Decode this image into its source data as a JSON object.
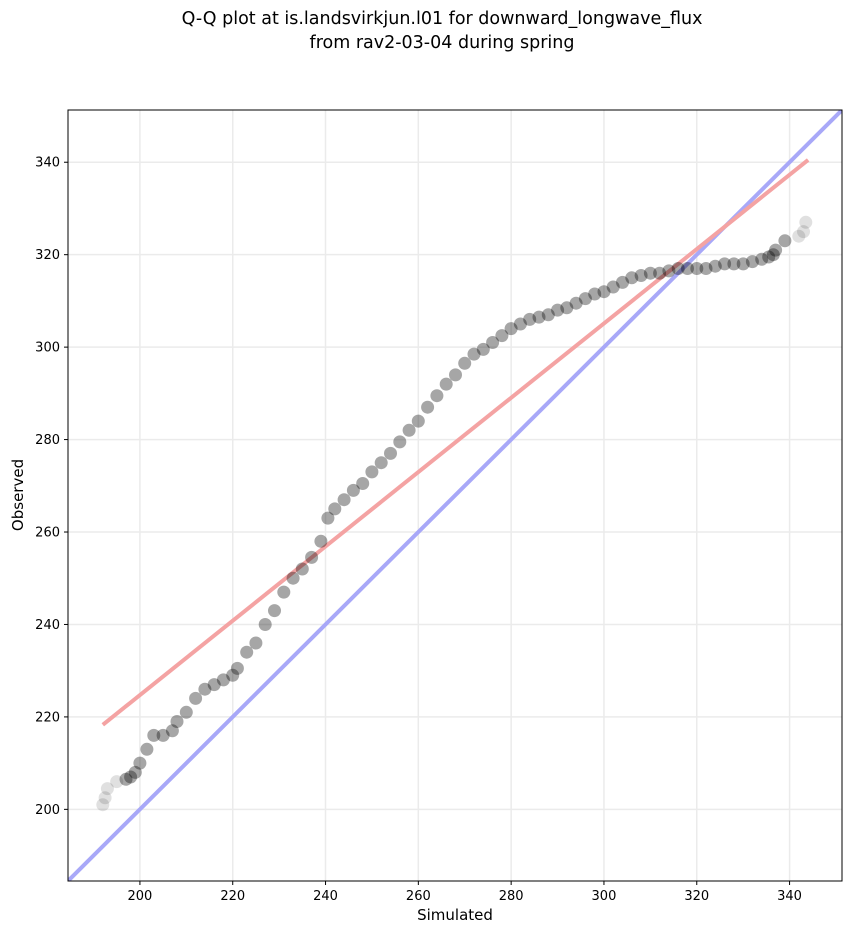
{
  "chart_data": {
    "type": "scatter",
    "title": "Q-Q plot at is.landsvirkjun.l01 for downward_longwave_flux",
    "subtitle": "from rav2-03-04 during spring",
    "xlabel": "Simulated",
    "ylabel": "Observed",
    "xlim": [
      184.5,
      351.3
    ],
    "ylim": [
      184.5,
      351.3
    ],
    "xticks": [
      200,
      220,
      240,
      260,
      280,
      300,
      320,
      340
    ],
    "yticks": [
      200,
      220,
      240,
      260,
      280,
      300,
      320,
      340
    ],
    "grid": true,
    "legend": "none",
    "colors": {
      "points": "#000000",
      "fit_line": "#f4a3a3",
      "one_to_one_line": "#a8a8f8",
      "grid": "#ebebeb"
    },
    "fit_line": {
      "x": [
        192,
        344
      ],
      "y": [
        218.3,
        340.5
      ]
    },
    "one_to_one_line": {
      "x": [
        184.5,
        351.3
      ],
      "y": [
        184.5,
        351.3
      ]
    },
    "quantiles": {
      "x": [
        192.0,
        192.5,
        193.0,
        195.0,
        197.0,
        198.0,
        199.0,
        200.0,
        201.5,
        203.0,
        205.0,
        207.0,
        208.0,
        210.0,
        212.0,
        214.0,
        216.0,
        218.0,
        220.0,
        221.0,
        223.0,
        225.0,
        227.0,
        229.0,
        231.0,
        233.0,
        235.0,
        237.0,
        239.0,
        240.5,
        242.0,
        244.0,
        246.0,
        248.0,
        250.0,
        252.0,
        254.0,
        256.0,
        258.0,
        260.0,
        262.0,
        264.0,
        266.0,
        268.0,
        270.0,
        272.0,
        274.0,
        276.0,
        278.0,
        280.0,
        282.0,
        284.0,
        286.0,
        288.0,
        290.0,
        292.0,
        294.0,
        296.0,
        298.0,
        300.0,
        302.0,
        304.0,
        306.0,
        308.0,
        310.0,
        312.0,
        314.0,
        316.0,
        318.0,
        320.0,
        322.0,
        324.0,
        326.0,
        328.0,
        330.0,
        332.0,
        334.0,
        335.5,
        336.5,
        337.0,
        339.0,
        342.0,
        343.0,
        343.5
      ],
      "y": [
        201.0,
        202.5,
        204.5,
        206.0,
        206.5,
        207.0,
        208.0,
        210.0,
        213.0,
        216.0,
        216.0,
        217.0,
        219.0,
        221.0,
        224.0,
        226.0,
        227.0,
        228.0,
        229.0,
        230.5,
        234.0,
        236.0,
        240.0,
        243.0,
        247.0,
        250.0,
        252.0,
        254.5,
        258.0,
        263.0,
        265.0,
        267.0,
        269.0,
        270.5,
        273.0,
        275.0,
        277.0,
        279.5,
        282.0,
        284.0,
        287.0,
        289.5,
        292.0,
        294.0,
        296.5,
        298.5,
        299.5,
        301.0,
        302.5,
        304.0,
        305.0,
        306.0,
        306.5,
        307.0,
        308.0,
        308.5,
        309.5,
        310.5,
        311.5,
        312.0,
        313.0,
        314.0,
        315.0,
        315.5,
        316.0,
        316.0,
        316.5,
        317.0,
        317.0,
        317.0,
        317.0,
        317.5,
        318.0,
        318.0,
        318.0,
        318.5,
        319.0,
        319.5,
        320.0,
        321.0,
        323.0,
        324.0,
        325.0,
        327.0
      ]
    }
  }
}
